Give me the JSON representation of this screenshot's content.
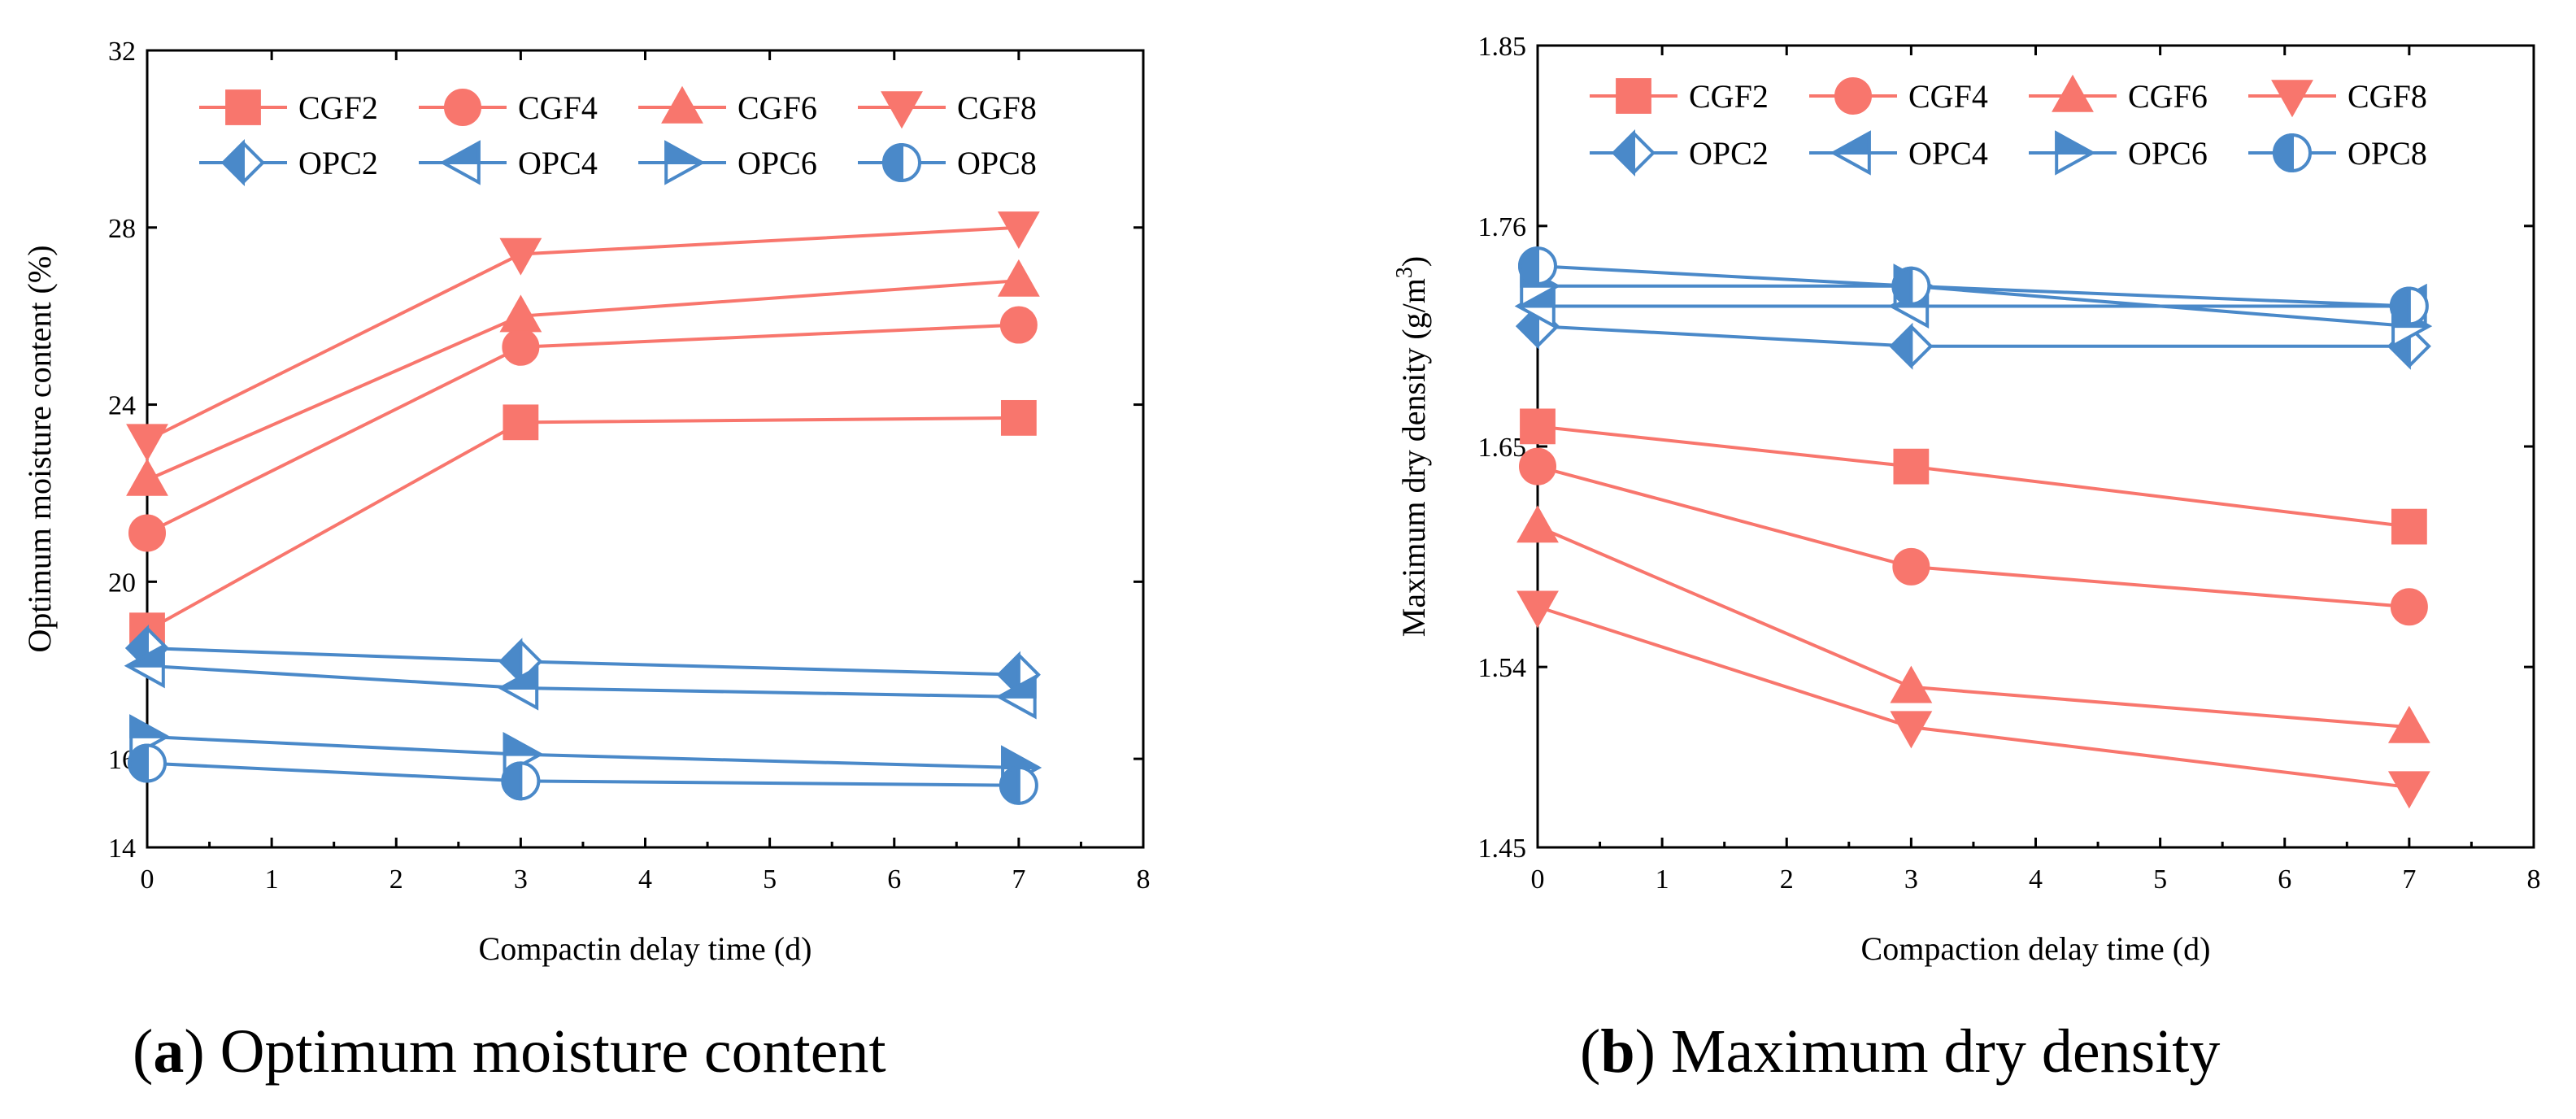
{
  "chart_data": [
    {
      "type": "line",
      "caption_letter": "a",
      "caption_text": " Optimum moisture content",
      "xlabel": "Compactin delay time (d)",
      "ylabel": "Optimum moisture content (%)",
      "xlim": [
        0,
        8
      ],
      "ylim": [
        14,
        32
      ],
      "xticks": [
        "0",
        "1",
        "2",
        "3",
        "4",
        "5",
        "6",
        "7",
        "8"
      ],
      "yticks": [
        "14",
        "16",
        "20",
        "24",
        "28",
        "32"
      ],
      "x": [
        0,
        3,
        7
      ],
      "series": [
        {
          "name": "CGF2",
          "marker": "square",
          "color": "#F8766D",
          "values": [
            18.9,
            23.6,
            23.7
          ]
        },
        {
          "name": "CGF4",
          "marker": "circle",
          "color": "#F8766D",
          "values": [
            21.1,
            25.3,
            25.8
          ]
        },
        {
          "name": "CGF6",
          "marker": "triangle-up",
          "color": "#F8766D",
          "values": [
            22.3,
            26.0,
            26.8
          ]
        },
        {
          "name": "CGF8",
          "marker": "triangle-down",
          "color": "#F8766D",
          "values": [
            23.2,
            27.4,
            28.0
          ]
        },
        {
          "name": "OPC2",
          "marker": "diamond-half",
          "color": "#4A89C9",
          "values": [
            18.5,
            18.2,
            17.9
          ]
        },
        {
          "name": "OPC4",
          "marker": "triangle-left-half",
          "color": "#4A89C9",
          "values": [
            18.1,
            17.6,
            17.4
          ]
        },
        {
          "name": "OPC6",
          "marker": "triangle-right-half",
          "color": "#4A89C9",
          "values": [
            16.5,
            16.1,
            15.8
          ]
        },
        {
          "name": "OPC8",
          "marker": "circle-half",
          "color": "#4A89C9",
          "values": [
            15.9,
            15.5,
            15.4
          ]
        }
      ]
    },
    {
      "type": "line",
      "caption_letter": "b",
      "caption_text": " Maximum dry density",
      "xlabel": "Compaction delay time (d)",
      "ylabel": "Maximum dry density (g/m",
      "ylabel_sup": "3",
      "ylabel_end": ")",
      "xlim": [
        0,
        8
      ],
      "ylim": [
        1.45,
        1.85
      ],
      "xticks": [
        "0",
        "1",
        "2",
        "3",
        "4",
        "5",
        "6",
        "7",
        "8"
      ],
      "yticks": [
        "1.45",
        "1.54",
        "1.65",
        "1.76",
        "1.85"
      ],
      "x": [
        0,
        3,
        7
      ],
      "series": [
        {
          "name": "CGF2",
          "marker": "square",
          "color": "#F8766D",
          "values": [
            1.66,
            1.64,
            1.61
          ]
        },
        {
          "name": "CGF4",
          "marker": "circle",
          "color": "#F8766D",
          "values": [
            1.64,
            1.59,
            1.57
          ]
        },
        {
          "name": "CGF6",
          "marker": "triangle-up",
          "color": "#F8766D",
          "values": [
            1.61,
            1.53,
            1.51
          ]
        },
        {
          "name": "CGF8",
          "marker": "triangle-down",
          "color": "#F8766D",
          "values": [
            1.57,
            1.51,
            1.48
          ]
        },
        {
          "name": "OPC2",
          "marker": "diamond-half",
          "color": "#4A89C9",
          "values": [
            1.71,
            1.7,
            1.7
          ]
        },
        {
          "name": "OPC4",
          "marker": "triangle-left-half",
          "color": "#4A89C9",
          "values": [
            1.72,
            1.72,
            1.72
          ]
        },
        {
          "name": "OPC6",
          "marker": "triangle-right-half",
          "color": "#4A89C9",
          "values": [
            1.73,
            1.73,
            1.71
          ]
        },
        {
          "name": "OPC8",
          "marker": "circle-half",
          "color": "#4A89C9",
          "values": [
            1.74,
            1.73,
            1.72
          ]
        }
      ]
    }
  ]
}
